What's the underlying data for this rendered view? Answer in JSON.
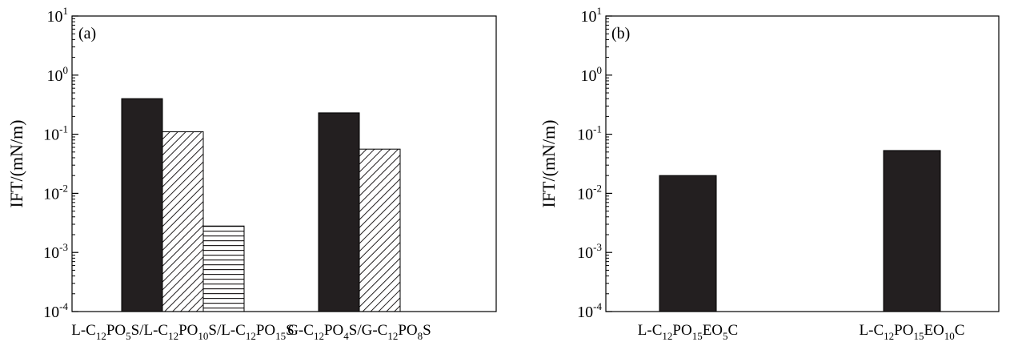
{
  "chart_data": [
    {
      "type": "bar",
      "panel_label": "(a)",
      "ylabel": "IFT/(mN/m)",
      "yscale": "log",
      "ylim": [
        0.0001,
        10
      ],
      "yticks": [
        {
          "value": 10,
          "base": "10",
          "exp": "1"
        },
        {
          "value": 1,
          "base": "10",
          "exp": "0"
        },
        {
          "value": 0.1,
          "base": "10",
          "exp": "-1"
        },
        {
          "value": 0.01,
          "base": "10",
          "exp": "-2"
        },
        {
          "value": 0.001,
          "base": "10",
          "exp": "-3"
        },
        {
          "value": 0.0001,
          "base": "10",
          "exp": "-4"
        }
      ],
      "groups": [
        {
          "label": [
            [
              "L-C",
              "n"
            ],
            [
              "12",
              "sub"
            ],
            [
              "PO",
              "n"
            ],
            [
              "5",
              "sub"
            ],
            [
              "S/L-C",
              "n"
            ],
            [
              "12",
              "sub"
            ],
            [
              "PO",
              "n"
            ],
            [
              "10",
              "sub"
            ],
            [
              "S/L-C",
              "n"
            ],
            [
              "12",
              "sub"
            ],
            [
              "PO",
              "n"
            ],
            [
              "15",
              "sub"
            ],
            [
              "S",
              "n"
            ]
          ],
          "bars": [
            {
              "value": 0.4,
              "pattern": "solid"
            },
            {
              "value": 0.11,
              "pattern": "diagonal"
            },
            {
              "value": 0.0028,
              "pattern": "horizontal"
            }
          ]
        },
        {
          "label": [
            [
              "G-C",
              "n"
            ],
            [
              "12",
              "sub"
            ],
            [
              "PO",
              "n"
            ],
            [
              "4",
              "sub"
            ],
            [
              "S/G-C",
              "n"
            ],
            [
              "12",
              "sub"
            ],
            [
              "PO",
              "n"
            ],
            [
              "8",
              "sub"
            ],
            [
              "S",
              "n"
            ]
          ],
          "bars": [
            {
              "value": 0.23,
              "pattern": "solid"
            },
            {
              "value": 0.056,
              "pattern": "diagonal"
            }
          ]
        }
      ]
    },
    {
      "type": "bar",
      "panel_label": "(b)",
      "ylabel": "IFT/(mN/m)",
      "yscale": "log",
      "ylim": [
        0.0001,
        10
      ],
      "yticks": [
        {
          "value": 10,
          "base": "10",
          "exp": "1"
        },
        {
          "value": 1,
          "base": "10",
          "exp": "0"
        },
        {
          "value": 0.1,
          "base": "10",
          "exp": "-1"
        },
        {
          "value": 0.01,
          "base": "10",
          "exp": "-2"
        },
        {
          "value": 0.001,
          "base": "10",
          "exp": "-3"
        },
        {
          "value": 0.0001,
          "base": "10",
          "exp": "-4"
        }
      ],
      "groups": [
        {
          "label": [
            [
              "L-C",
              "n"
            ],
            [
              "12",
              "sub"
            ],
            [
              "PO",
              "n"
            ],
            [
              "15",
              "sub"
            ],
            [
              "EO",
              "n"
            ],
            [
              "5",
              "sub"
            ],
            [
              "C",
              "n"
            ]
          ],
          "bars": [
            {
              "value": 0.02,
              "pattern": "solid"
            }
          ]
        },
        {
          "label": [
            [
              "L-C",
              "n"
            ],
            [
              "12",
              "sub"
            ],
            [
              "PO",
              "n"
            ],
            [
              "15",
              "sub"
            ],
            [
              "EO",
              "n"
            ],
            [
              "10",
              "sub"
            ],
            [
              "C",
              "n"
            ]
          ],
          "bars": [
            {
              "value": 0.053,
              "pattern": "solid"
            }
          ]
        }
      ]
    }
  ],
  "colors": {
    "bar_fill": "#231f20",
    "axis": "#000000",
    "hatch": "#231f20"
  }
}
